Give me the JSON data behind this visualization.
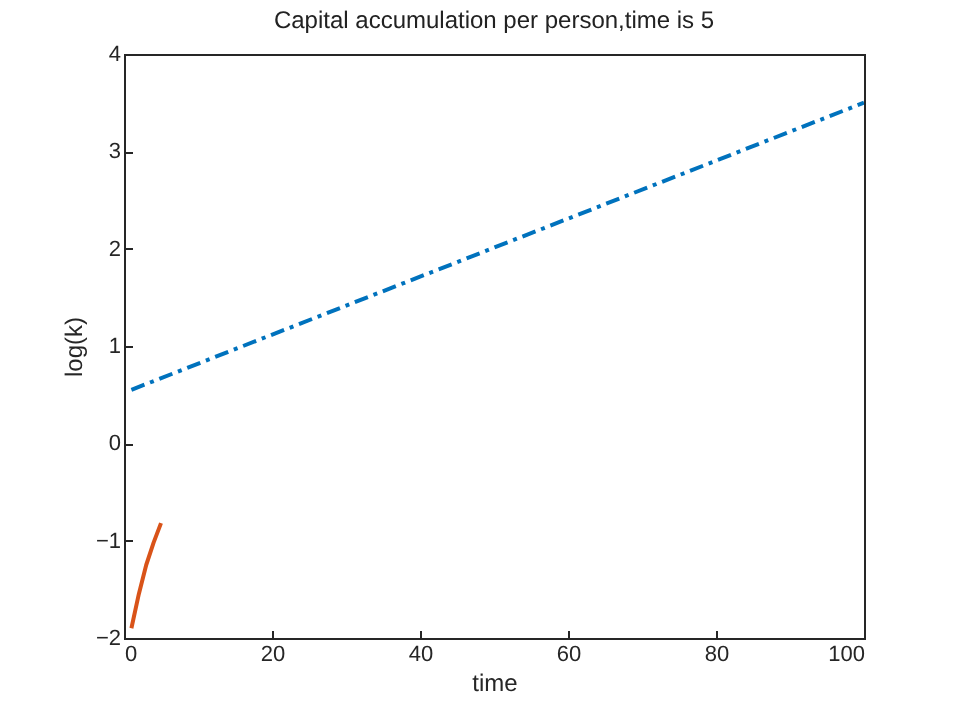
{
  "chart_data": {
    "type": "line",
    "title": "Capital accumulation per person,time is 5",
    "xlabel": "time",
    "ylabel": "log(k)",
    "series": [
      {
        "color": "#0072bd",
        "line_style": "dashed",
        "x": [
          1,
          100
        ],
        "values": [
          0.55,
          3.5
        ]
      },
      {
        "color": "#d95319",
        "line_style": "solid",
        "x": [
          1,
          2,
          3,
          4,
          5
        ],
        "values": [
          -1.9,
          -1.55,
          -1.25,
          -1.02,
          -0.82
        ]
      }
    ],
    "xlim": [
      0,
      100
    ],
    "xticks": [
      0,
      20,
      40,
      60,
      80,
      100
    ],
    "ylim": [
      -2,
      4
    ],
    "yticks": [
      -2,
      -1,
      0,
      1,
      2,
      3,
      4
    ],
    "grid": false,
    "marker": "none"
  }
}
